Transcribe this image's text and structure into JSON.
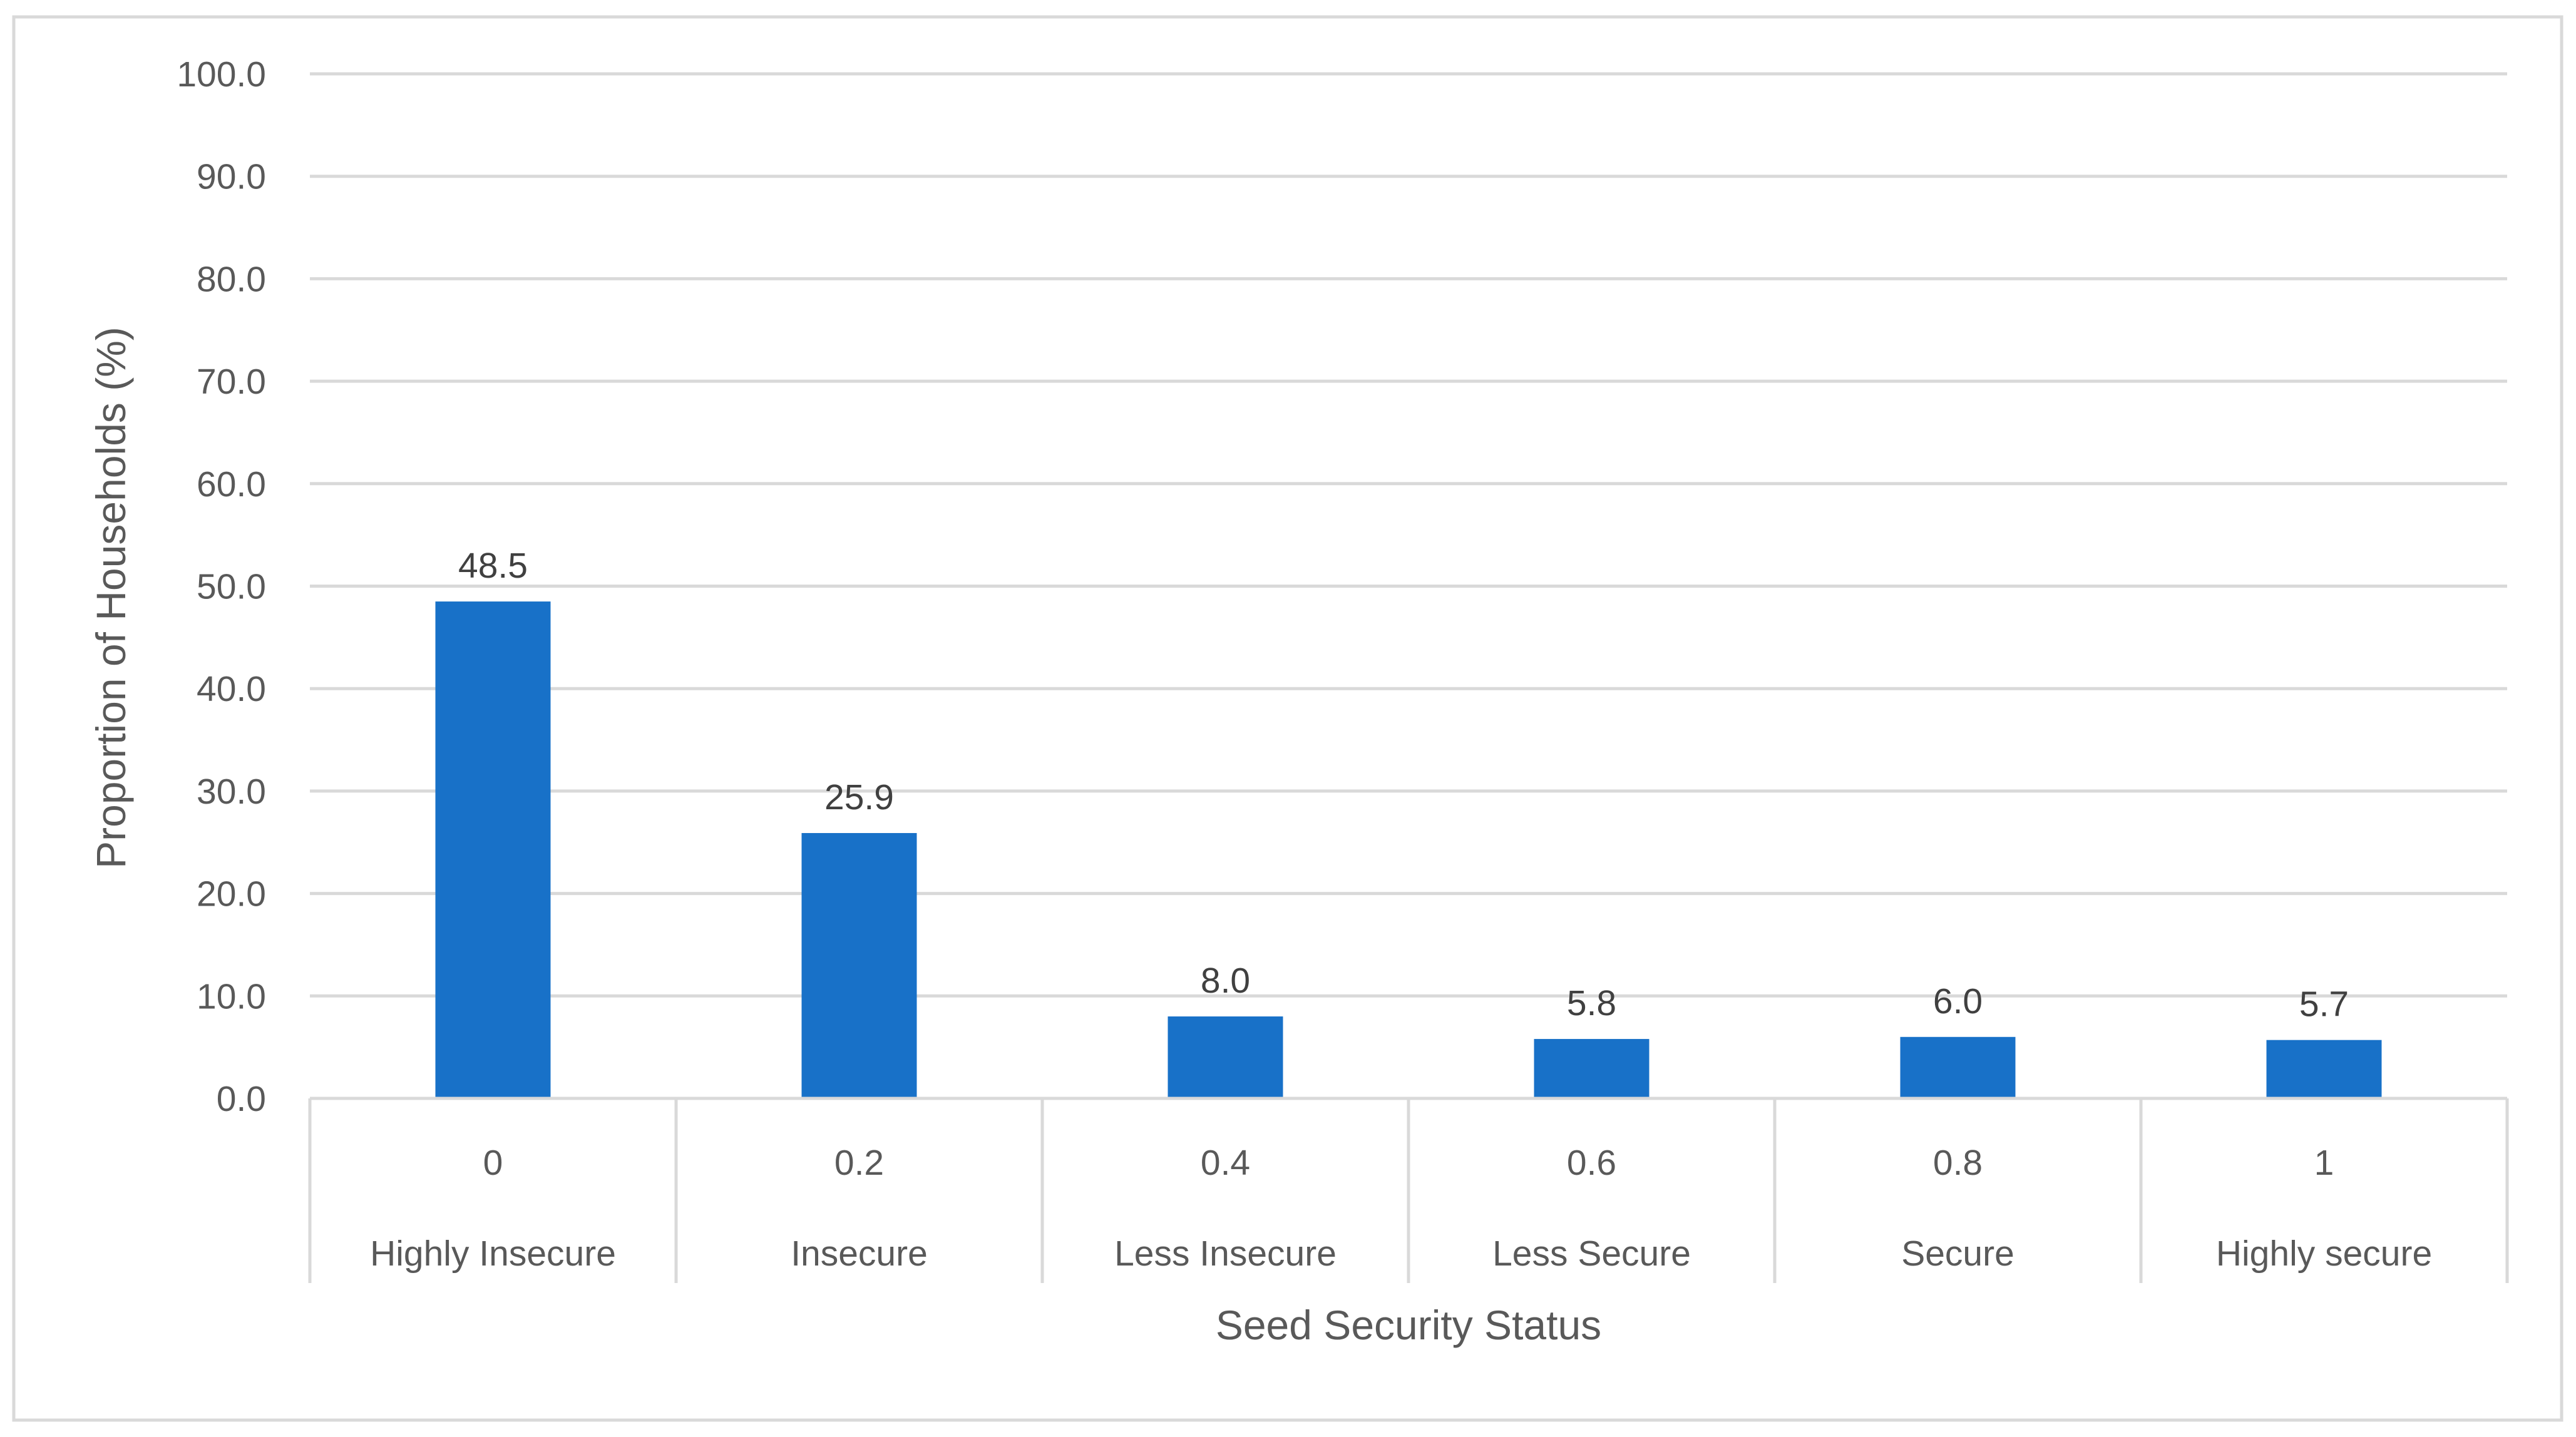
{
  "chart_data": {
    "type": "bar",
    "x_ticks": [
      "0",
      "0.2",
      "0.4",
      "0.6",
      "0.8",
      "1"
    ],
    "categories": [
      "Highly Insecure",
      "Insecure",
      "Less Insecure",
      "Less Secure",
      "Secure",
      "Highly secure"
    ],
    "values": [
      48.5,
      25.9,
      8.0,
      5.8,
      6.0,
      5.7
    ],
    "value_labels": [
      "48.5",
      "25.9",
      "8.0",
      "5.8",
      "6.0",
      "5.7"
    ],
    "title": "",
    "xlabel": "Seed Security Status",
    "ylabel": "Proportion of Households (%)",
    "ylim": [
      0,
      100
    ],
    "y_ticks": [
      "0.0",
      "10.0",
      "20.0",
      "30.0",
      "40.0",
      "50.0",
      "60.0",
      "70.0",
      "80.0",
      "90.0",
      "100.0"
    ],
    "grid": true,
    "legend": "none",
    "bar_color": "#1871C8",
    "grid_color": "#D9D9D9"
  }
}
